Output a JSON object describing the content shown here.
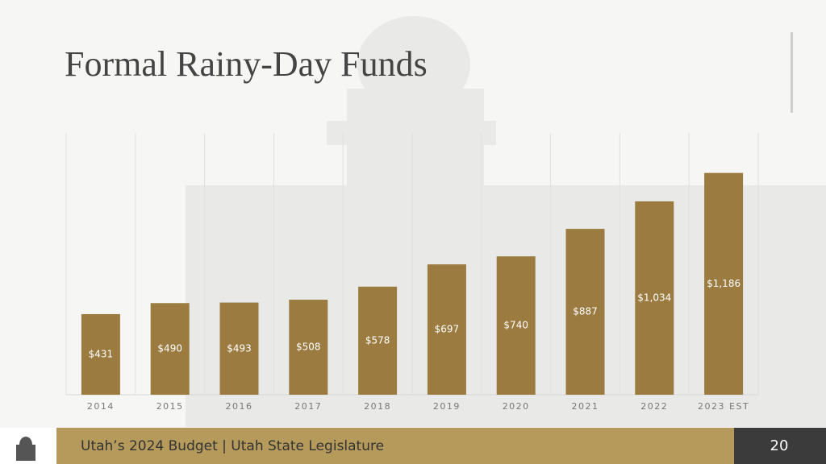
{
  "chart_data": {
    "type": "bar",
    "title": "Formal Rainy-Day Funds",
    "categories": [
      "2014",
      "2015",
      "2016",
      "2017",
      "2018",
      "2019",
      "2020",
      "2021",
      "2022",
      "2023 EST"
    ],
    "values": [
      431,
      490,
      493,
      508,
      578,
      697,
      740,
      887,
      1034,
      1186
    ],
    "value_labels": [
      "$431",
      "$490",
      "$493",
      "$508",
      "$578",
      "$697",
      "$740",
      "$887",
      "$1,034",
      "$1,186"
    ],
    "color": "#9b7b40",
    "ylim": [
      0,
      1400
    ],
    "grid": true
  },
  "footer": {
    "text": "Utah’s 2024 Budget | Utah State Legislature",
    "page_number": "20"
  }
}
